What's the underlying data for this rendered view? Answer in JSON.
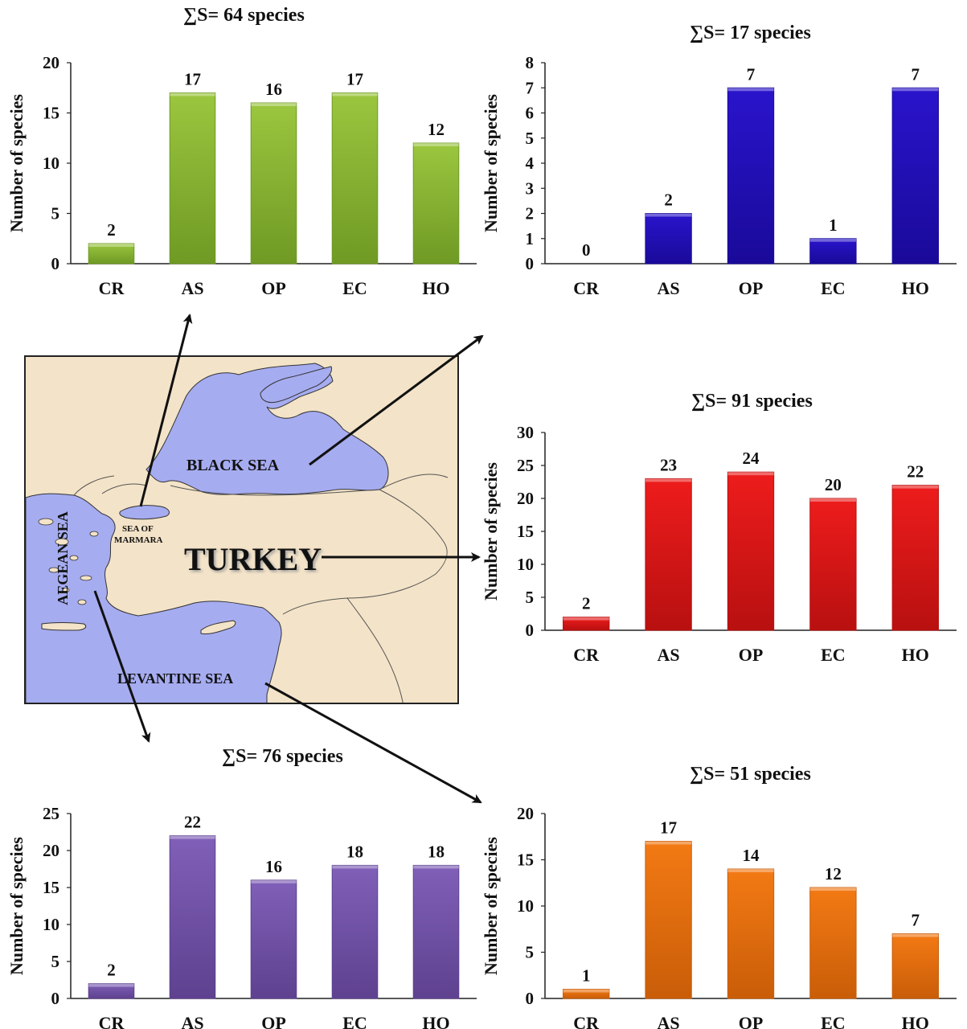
{
  "charts": {
    "black_sea_subregion": {
      "title": "∑S= 64 species",
      "ylabel": "Number of species",
      "color": "#9bc63f",
      "colorDark": "#6f9a24"
    },
    "black_sea": {
      "title": "∑S= 17 species",
      "ylabel": "Number of species",
      "color": "#2a14cc",
      "colorDark": "#1a0a99"
    },
    "turkey": {
      "title": "∑S= 91 species",
      "ylabel": "Number of species",
      "color": "#ee1c1c",
      "colorDark": "#b81010"
    },
    "aegean": {
      "title": "∑S= 76 species",
      "ylabel": "Number of species",
      "color": "#8060b8",
      "colorDark": "#5e418f"
    },
    "levantine": {
      "title": "∑S= 51 species",
      "ylabel": "Number of species",
      "color": "#f37a14",
      "colorDark": "#c95d08"
    }
  },
  "map": {
    "labels": {
      "black_sea": "BLACK SEA",
      "sea_of_marmara_1": "SEA OF",
      "sea_of_marmara_2": "MARMARA",
      "turkey": "TURKEY",
      "aegean_sea": "AEGEAN SEA",
      "levantine_sea": "LEVANTINE SEA"
    },
    "colors": {
      "land": "#f3e3c8",
      "sea": "#a6acf0",
      "border": "#222222"
    }
  },
  "chart_data": [
    {
      "type": "bar",
      "title": "∑S= 64 species",
      "xlabel": "",
      "ylabel": "Number of species",
      "categories": [
        "CR",
        "AS",
        "OP",
        "EC",
        "HO"
      ],
      "values": [
        2,
        17,
        16,
        17,
        12
      ],
      "ylim": [
        0,
        20
      ],
      "yticks": [
        0,
        5,
        10,
        15,
        20
      ],
      "grid": false
    },
    {
      "type": "bar",
      "title": "∑S= 17 species",
      "xlabel": "",
      "ylabel": "Number of species",
      "categories": [
        "CR",
        "AS",
        "OP",
        "EC",
        "HO"
      ],
      "values": [
        0,
        2,
        7,
        1,
        7
      ],
      "ylim": [
        0,
        8
      ],
      "yticks": [
        0,
        1,
        2,
        3,
        4,
        5,
        6,
        7,
        8
      ],
      "grid": false
    },
    {
      "type": "bar",
      "title": "∑S= 91 species",
      "xlabel": "",
      "ylabel": "Number of species",
      "categories": [
        "CR",
        "AS",
        "OP",
        "EC",
        "HO"
      ],
      "values": [
        2,
        23,
        24,
        20,
        22
      ],
      "ylim": [
        0,
        30
      ],
      "yticks": [
        0,
        5,
        10,
        15,
        20,
        25,
        30
      ],
      "grid": false
    },
    {
      "type": "bar",
      "title": "∑S= 76 species",
      "xlabel": "",
      "ylabel": "Number of species",
      "categories": [
        "CR",
        "AS",
        "OP",
        "EC",
        "HO"
      ],
      "values": [
        2,
        22,
        16,
        18,
        18
      ],
      "ylim": [
        0,
        25
      ],
      "yticks": [
        0,
        5,
        10,
        15,
        20,
        25
      ],
      "grid": false
    },
    {
      "type": "bar",
      "title": "∑S= 51 species",
      "xlabel": "",
      "ylabel": "Number of species",
      "categories": [
        "CR",
        "AS",
        "OP",
        "EC",
        "HO"
      ],
      "values": [
        1,
        17,
        14,
        12,
        7
      ],
      "ylim": [
        0,
        20
      ],
      "yticks": [
        0,
        5,
        10,
        15,
        20
      ],
      "grid": false
    }
  ]
}
